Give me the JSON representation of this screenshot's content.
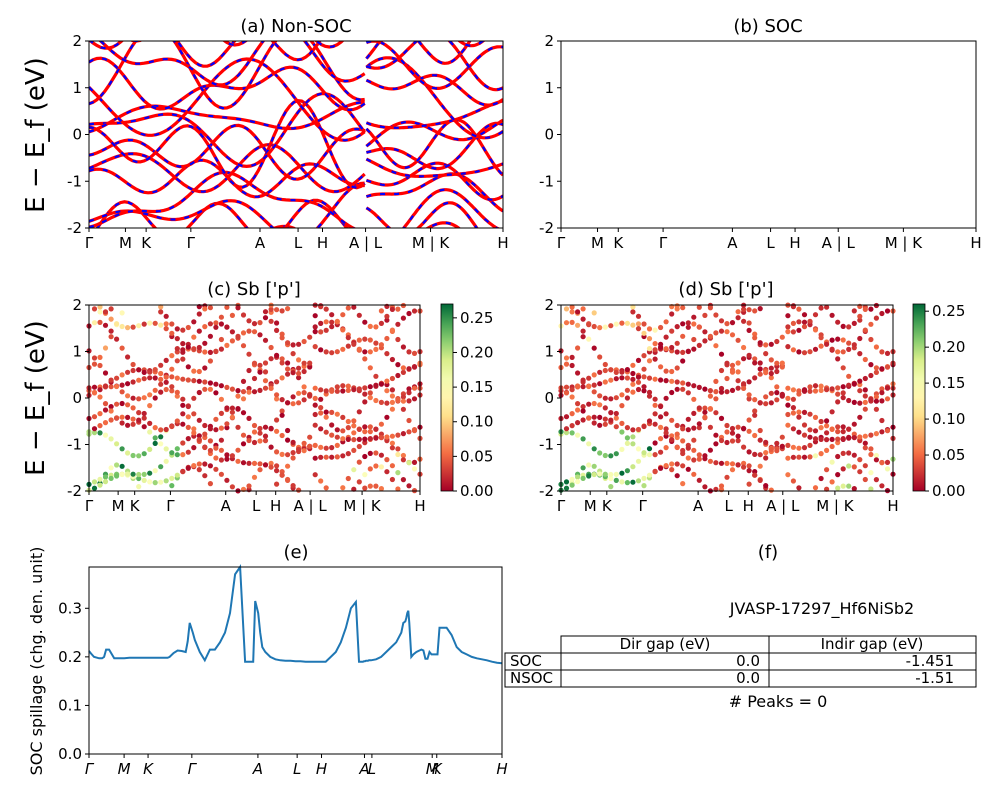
{
  "figure": {
    "ylabel_main": "E − E_f (eV)",
    "kpath_labels": [
      "Γ",
      "M",
      "K",
      "Γ",
      "A",
      "L",
      "H",
      "A | L",
      "M | K",
      "H"
    ]
  },
  "chart_data": [
    {
      "id": "a",
      "type": "line",
      "title": "(a) Non-SOC",
      "ylim": [
        -2,
        2
      ],
      "yticks": [
        -2,
        -1,
        0,
        1,
        2
      ],
      "series_colors": [
        "#ff0000",
        "#0000ff"
      ],
      "style": "red solid bands with blue dashed overlay"
    },
    {
      "id": "b",
      "type": "line",
      "title": "(b) SOC",
      "ylim": [
        -2,
        2
      ],
      "yticks": [
        -2,
        -1,
        0,
        1,
        2
      ],
      "series_colors": [
        "#0000ff"
      ]
    },
    {
      "id": "c",
      "type": "scatter",
      "title": "(c)  Sb ['p']",
      "ylim": [
        -2,
        2
      ],
      "yticks": [
        -2,
        -1,
        0,
        1,
        2
      ],
      "colormap": "RdYlGn",
      "colorbar_range": [
        0,
        0.27
      ],
      "colorbar_ticks": [
        "0.00",
        "0.05",
        "0.10",
        "0.15",
        "0.20",
        "0.25"
      ]
    },
    {
      "id": "d",
      "type": "scatter",
      "title": "(d) Sb ['p']",
      "ylim": [
        -2,
        2
      ],
      "yticks": [
        -2,
        -1,
        0,
        1,
        2
      ],
      "colormap": "RdYlGn",
      "colorbar_range": [
        0,
        0.26
      ],
      "colorbar_ticks": [
        "0.00",
        "0.05",
        "0.10",
        "0.15",
        "0.20",
        "0.25"
      ]
    },
    {
      "id": "e",
      "type": "line",
      "title": "(e)",
      "ylabel": "SOC spillage (chg. den. unit)",
      "ylim": [
        0,
        0.385
      ],
      "yticks": [
        "0.0",
        "0.1",
        "0.2",
        "0.3"
      ],
      "xticks": [
        "Γ",
        "M",
        "K",
        "Γ",
        "A",
        "L",
        "H",
        "A",
        "L",
        "M",
        "K",
        "H"
      ],
      "color": "#1f77b4",
      "x": [
        0,
        2,
        5,
        10,
        13,
        15,
        17,
        20,
        25,
        30,
        35,
        40,
        43,
        46,
        48,
        50,
        52,
        54,
        56,
        58,
        60,
        62,
        63,
        64,
        65,
        66,
        70,
        74,
        76,
        78,
        80,
        84,
        88,
        92,
        96,
        98,
        100,
        103,
        105,
        110,
        115,
        120,
        125,
        130,
        135,
        140,
        145,
        150,
        155,
        160,
        163,
        165,
        168,
        170,
        172,
        175,
        180,
        185,
        190,
        195,
        200,
        205,
        210,
        215,
        220,
        225,
        230,
        235,
        240,
        245,
        250,
        255,
        260,
        265,
        268,
        270,
        272,
        273,
        274,
        275,
        276,
        277,
        278,
        280,
        285,
        290,
        295,
        300,
        305,
        310,
        312,
        314,
        315,
        316,
        317,
        318,
        320,
        322,
        325,
        328,
        330,
        332,
        334,
        336,
        338,
        340,
        342,
        344,
        346,
        348,
        350,
        355,
        360,
        365,
        370,
        375,
        380,
        385,
        390,
        395,
        400,
        405,
        410
      ],
      "y": [
        0.212,
        0.207,
        0.2,
        0.197,
        0.197,
        0.2,
        0.215,
        0.215,
        0.197,
        0.197,
        0.197,
        0.198,
        0.198,
        0.198,
        0.198,
        0.198,
        0.198,
        0.198,
        0.198,
        0.198,
        0.198,
        0.198,
        0.198,
        0.198,
        0.198,
        0.198,
        0.198,
        0.198,
        0.198,
        0.198,
        0.2,
        0.208,
        0.213,
        0.212,
        0.21,
        0.232,
        0.27,
        0.25,
        0.235,
        0.21,
        0.193,
        0.215,
        0.215,
        0.23,
        0.25,
        0.29,
        0.37,
        0.385,
        0.19,
        0.19,
        0.19,
        0.315,
        0.29,
        0.25,
        0.22,
        0.21,
        0.2,
        0.195,
        0.193,
        0.192,
        0.192,
        0.191,
        0.191,
        0.19,
        0.19,
        0.19,
        0.19,
        0.19,
        0.2,
        0.21,
        0.23,
        0.26,
        0.3,
        0.313,
        0.19,
        0.19,
        0.19,
        0.191,
        0.191,
        0.192,
        0.192,
        0.192,
        0.193,
        0.193,
        0.195,
        0.2,
        0.21,
        0.22,
        0.23,
        0.25,
        0.27,
        0.273,
        0.28,
        0.29,
        0.295,
        0.27,
        0.2,
        0.205,
        0.21,
        0.213,
        0.215,
        0.213,
        0.196,
        0.196,
        0.21,
        0.205,
        0.205,
        0.205,
        0.205,
        0.26,
        0.26,
        0.26,
        0.245,
        0.22,
        0.21,
        0.205,
        0.2,
        0.197,
        0.195,
        0.193,
        0.19,
        0.188,
        0.187
      ]
    },
    {
      "id": "f",
      "type": "table",
      "title": "(f)",
      "caption": "JVASP-17297_Hf6NiSb2",
      "columns": [
        "",
        "Dir gap (eV)",
        "Indir gap (eV)"
      ],
      "rows": [
        {
          "label": "SOC",
          "dir": "0.0",
          "indir": "-1.451"
        },
        {
          "label": "NSOC",
          "dir": "0.0",
          "indir": "-1.51"
        }
      ],
      "footer": "# Peaks = 0"
    }
  ]
}
